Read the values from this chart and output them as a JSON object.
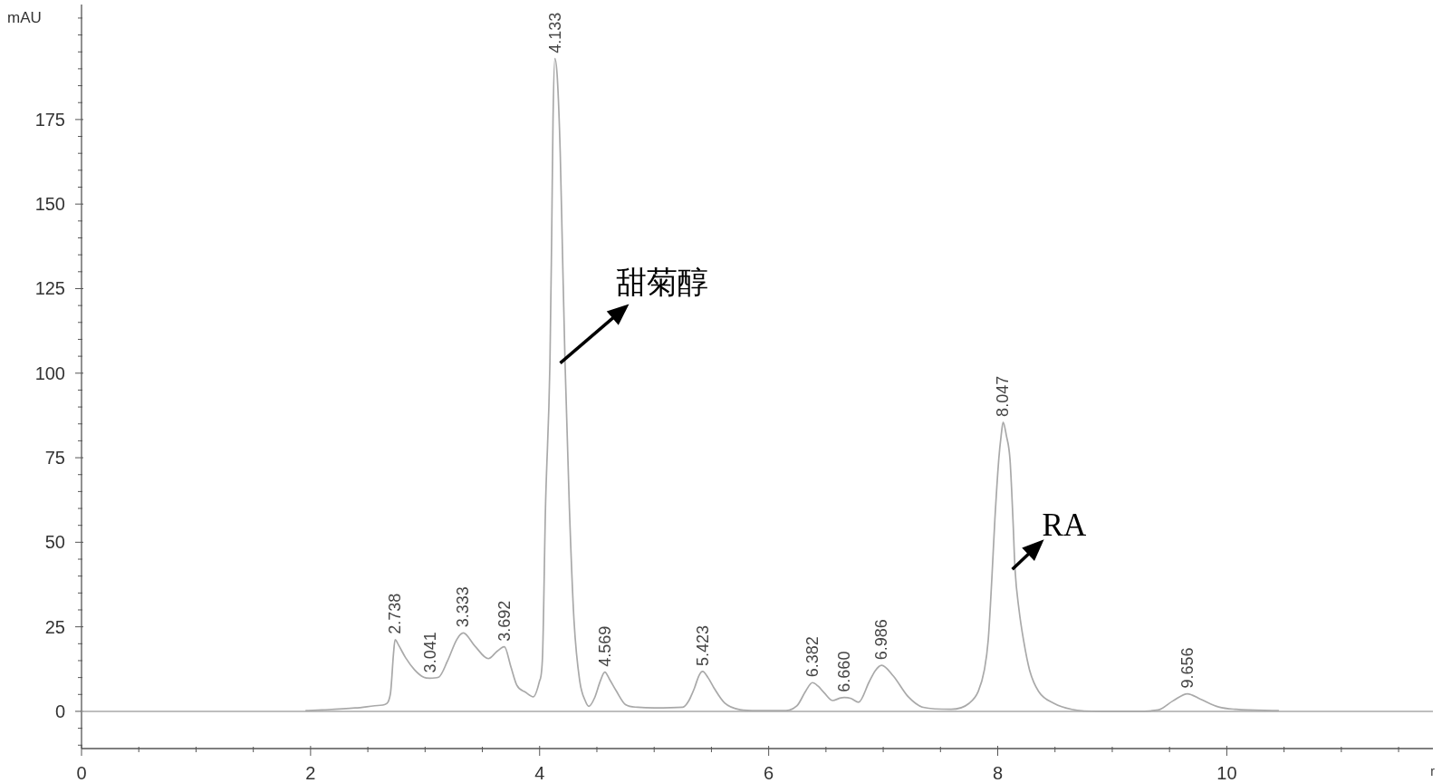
{
  "chart_data": {
    "type": "line",
    "ylabel": "mAU",
    "xlabel": "r",
    "xlim": [
      0,
      11.8
    ],
    "ylim": [
      -11,
      209
    ],
    "xticks": [
      0,
      {
        "value": 0.5,
        "label": null
      },
      {
        "value": 1,
        "label": null
      },
      {
        "value": 1.5,
        "label": null
      },
      2,
      {
        "value": 2.5,
        "label": null
      },
      {
        "value": 3,
        "label": null
      },
      {
        "value": 3.5,
        "label": null
      },
      4,
      {
        "value": 4.5,
        "label": null
      },
      {
        "value": 5,
        "label": null
      },
      {
        "value": 5.5,
        "label": null
      },
      6,
      {
        "value": 6.5,
        "label": null
      },
      {
        "value": 7,
        "label": null
      },
      {
        "value": 7.5,
        "label": null
      },
      8,
      {
        "value": 8.5,
        "label": null
      },
      {
        "value": 9,
        "label": null
      },
      {
        "value": 9.5,
        "label": null
      },
      10,
      {
        "value": 10.5,
        "label": null
      },
      {
        "value": 11,
        "label": null
      },
      {
        "value": 11.5,
        "label": null
      }
    ],
    "yticks": [
      {
        "value": -10,
        "label": null
      },
      {
        "value": -5,
        "label": null
      },
      0,
      {
        "value": 5,
        "label": null
      },
      {
        "value": 10,
        "label": null
      },
      {
        "value": 15,
        "label": null
      },
      {
        "value": 20,
        "label": null
      },
      25,
      {
        "value": 30,
        "label": null
      },
      {
        "value": 35,
        "label": null
      },
      {
        "value": 40,
        "label": null
      },
      {
        "value": 45,
        "label": null
      },
      50,
      {
        "value": 55,
        "label": null
      },
      {
        "value": 60,
        "label": null
      },
      {
        "value": 65,
        "label": null
      },
      {
        "value": 70,
        "label": null
      },
      75,
      {
        "value": 80,
        "label": null
      },
      {
        "value": 85,
        "label": null
      },
      {
        "value": 90,
        "label": null
      },
      {
        "value": 95,
        "label": null
      },
      100,
      {
        "value": 105,
        "label": null
      },
      {
        "value": 110,
        "label": null
      },
      {
        "value": 115,
        "label": null
      },
      {
        "value": 120,
        "label": null
      },
      125,
      {
        "value": 130,
        "label": null
      },
      {
        "value": 135,
        "label": null
      },
      {
        "value": 140,
        "label": null
      },
      {
        "value": 145,
        "label": null
      },
      150,
      {
        "value": 155,
        "label": null
      },
      {
        "value": 160,
        "label": null
      },
      {
        "value": 165,
        "label": null
      },
      {
        "value": 170,
        "label": null
      },
      175,
      {
        "value": 180,
        "label": null
      },
      {
        "value": 185,
        "label": null
      },
      {
        "value": 190,
        "label": null
      },
      {
        "value": 195,
        "label": null
      },
      {
        "value": 200,
        "label": null
      },
      {
        "value": 205,
        "label": null
      }
    ],
    "series": [
      {
        "color": "#a9a9a9",
        "x": [
          1.96,
          2.1,
          2.39,
          2.61,
          2.645,
          2.697,
          2.724,
          2.738,
          2.77,
          2.829,
          2.908,
          2.987,
          3.041,
          3.118,
          3.197,
          3.276,
          3.333,
          3.433,
          3.552,
          3.63,
          3.692,
          3.749,
          3.8,
          3.879,
          3.945,
          3.997,
          4.025,
          4.051,
          4.09,
          4.105,
          4.117,
          4.133,
          4.155,
          4.18,
          4.2,
          4.222,
          4.26,
          4.3,
          4.35,
          4.4,
          4.43,
          4.48,
          4.53,
          4.569,
          4.61,
          4.67,
          4.75,
          4.857,
          5.0,
          5.25,
          5.3,
          5.352,
          5.39,
          5.423,
          5.47,
          5.523,
          5.615,
          5.75,
          5.9,
          6.114,
          6.246,
          6.325,
          6.382,
          6.43,
          6.482,
          6.56,
          6.62,
          6.66,
          6.72,
          6.785,
          6.877,
          6.93,
          6.986,
          7.087,
          7.219,
          7.35,
          7.593,
          7.751,
          7.83,
          7.883,
          7.917,
          7.948,
          7.975,
          8.009,
          8.03,
          8.047,
          8.075,
          8.107,
          8.133,
          8.151,
          8.186,
          8.225,
          8.278,
          8.357,
          8.489,
          8.647,
          8.9,
          9.2,
          9.4,
          9.53,
          9.656,
          9.77,
          9.93,
          10.08,
          10.45
        ],
        "values": [
          0.2,
          0.4,
          1.0,
          1.8,
          2.0,
          5.2,
          17,
          21.2,
          19.5,
          15.9,
          12.3,
          10.1,
          9.8,
          10.1,
          15,
          21.2,
          23.2,
          19.4,
          15.6,
          17.8,
          19.1,
          13.2,
          7.8,
          5.6,
          4.3,
          8.7,
          16,
          60,
          103,
          140,
          175,
          193,
          187,
          165,
          135,
          103,
          60,
          27,
          9,
          3,
          1.5,
          4,
          9,
          11.6,
          9.5,
          6,
          2,
          1.2,
          1.0,
          1.2,
          3,
          6.9,
          10.5,
          11.8,
          10,
          6.9,
          2.5,
          0.5,
          0.2,
          0.2,
          1.6,
          6.1,
          8.5,
          7.5,
          5.6,
          3.2,
          3.9,
          4.1,
          3.8,
          2.7,
          8.7,
          12,
          13.6,
          10.5,
          4.3,
          1.2,
          0.6,
          2.4,
          5.9,
          12.2,
          21.1,
          38.9,
          56.7,
          74.5,
          81.6,
          85.5,
          81.6,
          74.5,
          56.7,
          42,
          30,
          21.1,
          12.2,
          5.9,
          2.4,
          0.6,
          0,
          0,
          0.4,
          3.1,
          5.2,
          3.6,
          1.3,
          0.6,
          0.2
        ]
      }
    ],
    "ref_lines": [
      {
        "axis": "y",
        "value": 0,
        "color": "#a9a9a9"
      }
    ],
    "annotations": [
      {
        "text": "2.738",
        "x": 2.738,
        "y": 21.2
      },
      {
        "text": "3.041",
        "x": 3.041,
        "y": 9.8
      },
      {
        "text": "3.333",
        "x": 3.333,
        "y": 23.2
      },
      {
        "text": "3.692",
        "x": 3.692,
        "y": 19.1
      },
      {
        "text": "4.133",
        "x": 4.133,
        "y": 193
      },
      {
        "text": "4.569",
        "x": 4.569,
        "y": 11.6
      },
      {
        "text": "5.423",
        "x": 5.423,
        "y": 11.8
      },
      {
        "text": "6.382",
        "x": 6.382,
        "y": 8.5
      },
      {
        "text": "6.660",
        "x": 6.66,
        "y": 4.1
      },
      {
        "text": "6.986",
        "x": 6.986,
        "y": 13.6
      },
      {
        "text": "8.047",
        "x": 8.047,
        "y": 85.5
      },
      {
        "text": "9.656",
        "x": 9.656,
        "y": 5.2
      },
      {
        "text": "甜菊醇",
        "x": 4.18,
        "y": 103
      },
      {
        "text": "RA",
        "x": 8.151,
        "y": 42
      }
    ]
  }
}
